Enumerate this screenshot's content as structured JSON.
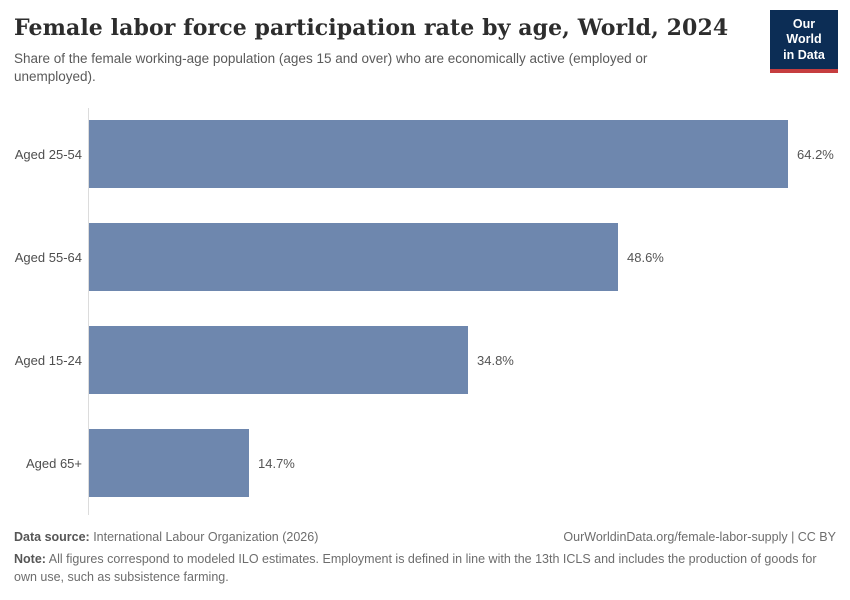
{
  "header": {
    "title": "Female labor force participation rate by age, World, 2024",
    "subtitle": "Share of the female working-age population (ages 15 and over) who are economically active (employed or unemployed).",
    "logo": {
      "line1": "Our World",
      "line2": "in Data"
    }
  },
  "chart_data": {
    "type": "bar",
    "orientation": "horizontal",
    "categories": [
      "Aged 25-54",
      "Aged 55-64",
      "Aged 15-24",
      "Aged 65+"
    ],
    "values": [
      64.2,
      48.6,
      34.8,
      14.7
    ],
    "value_labels": [
      "64.2%",
      "48.6%",
      "34.8%",
      "14.7%"
    ],
    "unit": "%",
    "xlim": [
      0,
      64.2
    ],
    "grid": false,
    "legend": "none",
    "bar_color": "#6e87ae"
  },
  "footer": {
    "source_label": "Data source:",
    "source_text": " International Labour Organization (2026)",
    "link_text": "OurWorldinData.org/female-labor-supply | CC BY",
    "note_label": "Note:",
    "note_text": " All figures correspond to modeled ILO estimates. Employment is defined in line with the 13th ICLS and includes the production of goods for own use, such as subsistence farming."
  },
  "colors": {
    "bar": "#6e87ae",
    "logo_bg": "#0c2d55",
    "logo_stripe": "#c63d3f",
    "axis_line": "#dcdcdc"
  }
}
